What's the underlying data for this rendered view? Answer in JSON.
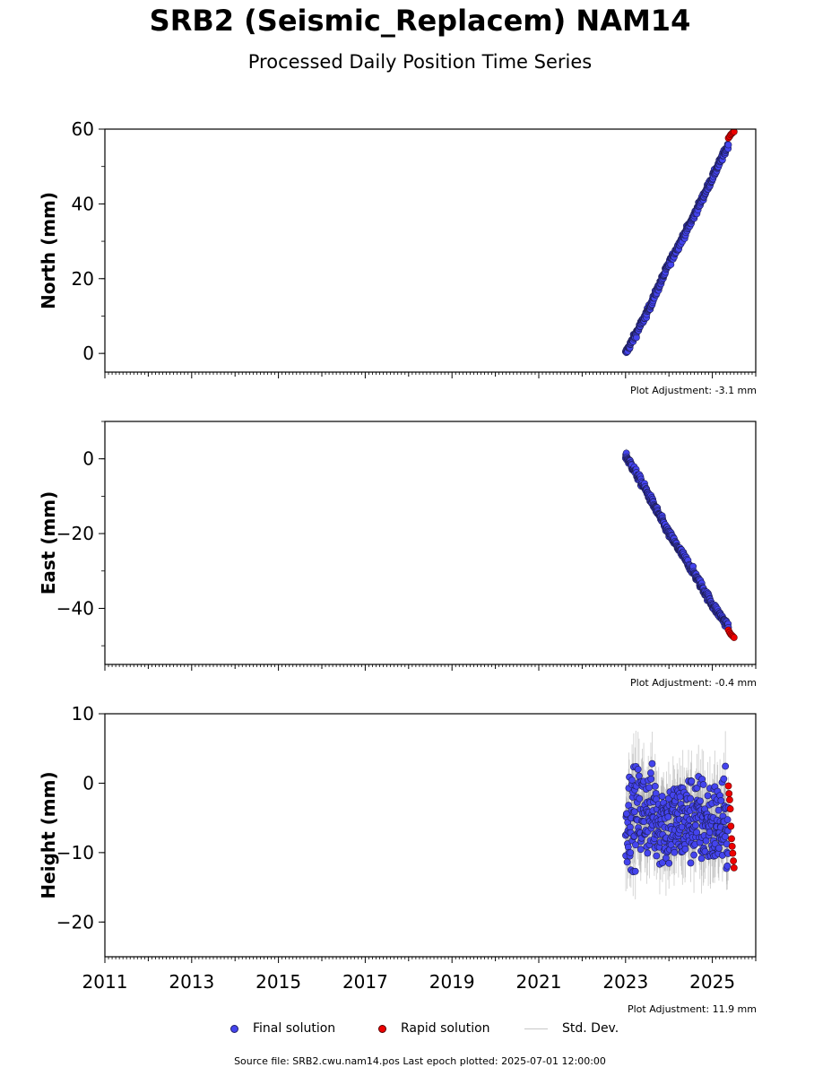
{
  "header": {
    "title": "SRB2 (Seismic_Replacem) NAM14",
    "subtitle": "Processed Daily Position Time Series"
  },
  "legend": {
    "final_label": "Final solution",
    "rapid_label": "Rapid solution",
    "std_label": "Std. Dev."
  },
  "footer": {
    "source": "Source file: SRB2.cwu.nam14.pos  Last epoch plotted: 2025-07-01 12:00:00"
  },
  "colors": {
    "final": "#4444ee",
    "rapid": "#ee0000",
    "std": "#9a9a9a"
  },
  "chart_data": [
    {
      "type": "scatter",
      "ylabel": "North (mm)",
      "ylim": [
        -5,
        60
      ],
      "yticks": [
        0,
        20,
        40,
        60
      ],
      "xlim": [
        2011,
        2026
      ],
      "xticks": [],
      "adjustment": "Plot Adjustment: -3.1 mm",
      "trend": {
        "x": [
          2023.0,
          2023.5,
          2024.0,
          2024.5,
          2025.0,
          2025.5
        ],
        "y": [
          0,
          11,
          24,
          35,
          47,
          59
        ]
      },
      "noise_mm": 0.8,
      "std_mm": 1.0,
      "rapid": {
        "x_start": 2025.37,
        "x_end": 2025.5,
        "values": [
          57.6,
          58.0,
          58.5,
          58.8,
          59.1,
          59.3
        ]
      }
    },
    {
      "type": "scatter",
      "ylabel": "East (mm)",
      "ylim": [
        -55,
        10
      ],
      "yticks": [
        0,
        -20,
        -40
      ],
      "xlim": [
        2011,
        2026
      ],
      "xticks": [],
      "adjustment": "Plot Adjustment: -0.4 mm",
      "trend": {
        "x": [
          2023.0,
          2023.5,
          2024.0,
          2024.5,
          2025.0,
          2025.5
        ],
        "y": [
          1,
          -9,
          -20,
          -29,
          -39,
          -47
        ]
      },
      "noise_mm": 0.9,
      "std_mm": 1.0,
      "rapid": {
        "x_start": 2025.37,
        "x_end": 2025.5,
        "values": [
          -45.8,
          -46.4,
          -46.9,
          -47.2,
          -47.5,
          -47.8
        ]
      }
    },
    {
      "type": "scatter",
      "ylabel": "Height (mm)",
      "ylim": [
        -25,
        10
      ],
      "yticks": [
        10,
        0,
        -10,
        -20
      ],
      "xlim": [
        2011,
        2026
      ],
      "xticks": [
        "2011",
        "2013",
        "2015",
        "2017",
        "2019",
        "2021",
        "2023",
        "2025"
      ],
      "adjustment": "Plot Adjustment: 11.9 mm",
      "trend": {
        "x": [
          2023.0,
          2023.5,
          2024.0,
          2024.5,
          2025.0,
          2025.5
        ],
        "y": [
          -5,
          -4,
          -6,
          -5,
          -6,
          -6
        ]
      },
      "noise_mm": 5.5,
      "std_mm": 4.0,
      "rapid": {
        "x_start": 2025.37,
        "x_end": 2025.5,
        "values": [
          -0.4,
          -1.5,
          -2.4,
          -3.7,
          -6.2,
          -8.0,
          -9.1,
          -10.1,
          -11.2,
          -12.2
        ]
      }
    }
  ]
}
